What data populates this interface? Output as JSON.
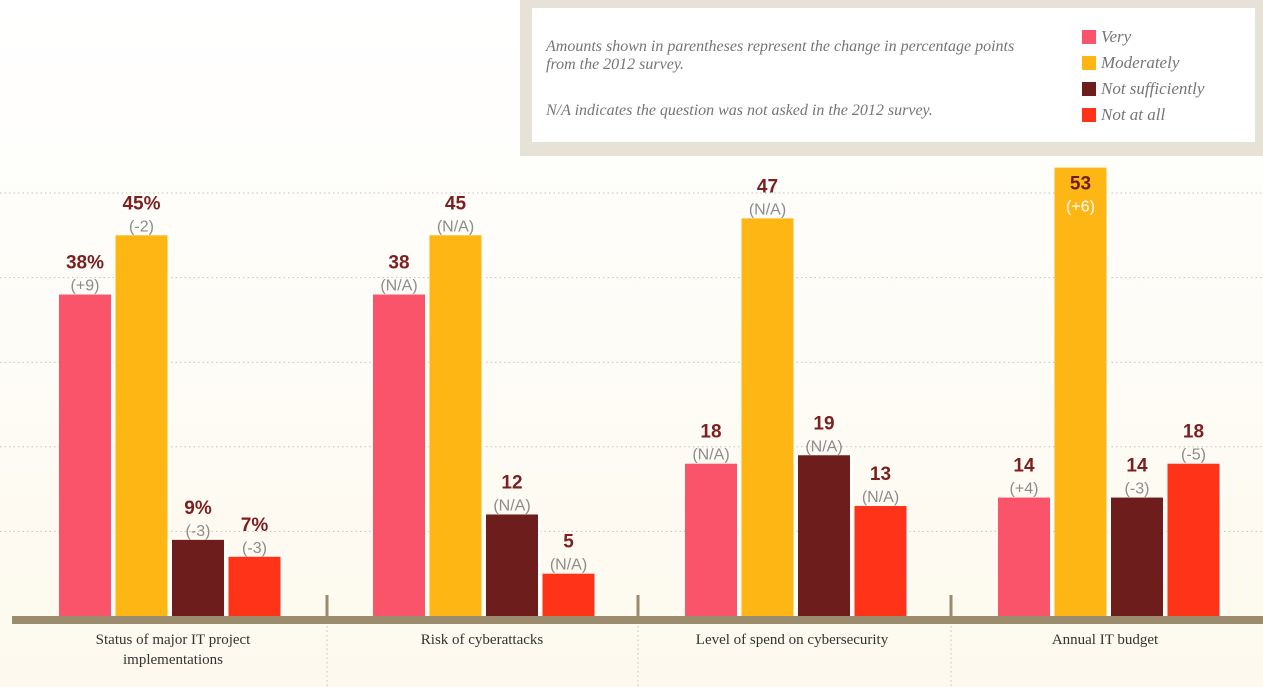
{
  "notes": {
    "line1": "Amounts shown in parentheses represent the change in percentage points from the 2012 survey.",
    "line2": "N/A indicates the question was not asked in the 2012 survey."
  },
  "colors": {
    "very": "#f9546a",
    "moderately": "#fdb614",
    "not_sufficiently": "#6d1d1c",
    "not_at_all": "#ff3318",
    "value_label": "#7b1f1f",
    "change_label": "#8c8c8c",
    "axis": "#9b8c6d"
  },
  "chart_data": {
    "type": "bar",
    "categories": [
      "Status of major IT project implementations",
      "Risk of cyberattacks",
      "Level of spend on cybersecurity",
      "Annual IT budget"
    ],
    "series": [
      {
        "name": "Very",
        "color": "#f9546a",
        "values": [
          38,
          38,
          18,
          14
        ],
        "value_labels": [
          "38%",
          "38",
          "18",
          "14"
        ],
        "change_labels": [
          "(+9)",
          "(N/A)",
          "(N/A)",
          "(+4)"
        ]
      },
      {
        "name": "Moderately",
        "color": "#fdb614",
        "values": [
          45,
          45,
          47,
          53
        ],
        "value_labels": [
          "45%",
          "45",
          "47",
          "53"
        ],
        "change_labels": [
          "(-2)",
          "(N/A)",
          "(N/A)",
          "(+6)"
        ]
      },
      {
        "name": "Not sufficiently",
        "color": "#6d1d1c",
        "values": [
          9,
          12,
          19,
          14
        ],
        "value_labels": [
          "9%",
          "12",
          "19",
          "14"
        ],
        "change_labels": [
          "(-3)",
          "(N/A)",
          "(N/A)",
          "(-3)"
        ]
      },
      {
        "name": "Not at all",
        "color": "#ff3318",
        "values": [
          7,
          5,
          13,
          18
        ],
        "value_labels": [
          "7%",
          "5",
          "13",
          "18"
        ],
        "change_labels": [
          "(-3)",
          "(N/A)",
          "(N/A)",
          "(-5)"
        ]
      }
    ],
    "ylim": [
      0,
      55
    ],
    "grid": true,
    "legend": "top-right"
  }
}
